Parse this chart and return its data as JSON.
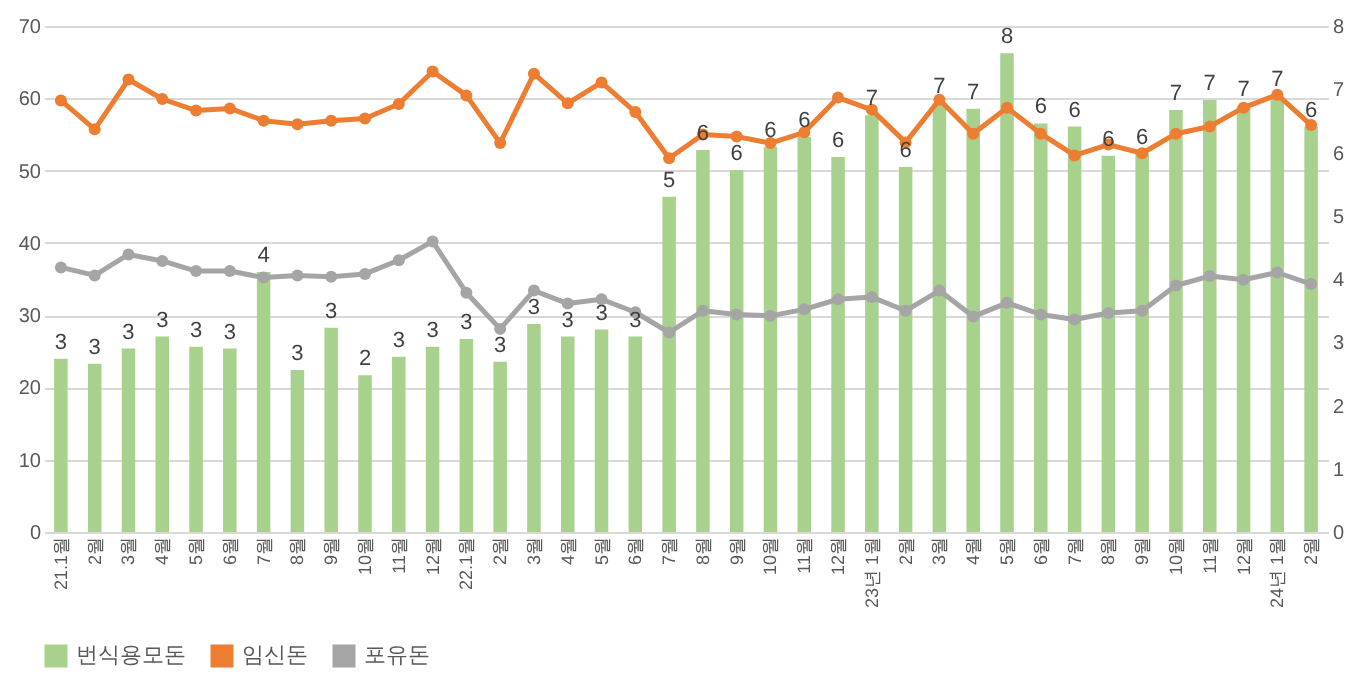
{
  "chart_data": {
    "type": "bar",
    "categories": [
      "21.1월",
      "2월",
      "3월",
      "4월",
      "5월",
      "6월",
      "7월",
      "8월",
      "9월",
      "10월",
      "11월",
      "12월",
      "22.1월",
      "2월",
      "3월",
      "4월",
      "5월",
      "6월",
      "7월",
      "8월",
      "9월",
      "10월",
      "11월",
      "12월",
      "23년 1월",
      "2월",
      "3월",
      "4월",
      "5월",
      "6월",
      "7월",
      "8월",
      "9월",
      "10월",
      "11월",
      "12월",
      "24년 1월",
      "2월"
    ],
    "series": [
      {
        "name": "번식용모돈",
        "axis": "y2",
        "color": "#a9d18e",
        "values": [
          2.74,
          2.66,
          2.9,
          3.09,
          2.93,
          2.9,
          4.11,
          2.56,
          3.23,
          2.48,
          2.77,
          2.93,
          3.05,
          2.69,
          3.29,
          3.09,
          3.2,
          3.09,
          5.3,
          6.04,
          5.72,
          6.09,
          6.25,
          5.93,
          6.59,
          5.77,
          6.78,
          6.69,
          7.57,
          6.46,
          6.41,
          5.95,
          5.98,
          6.67,
          6.83,
          6.73,
          6.89,
          6.41
        ],
        "value_labels": [
          "3",
          "3",
          "3",
          "3",
          "3",
          "3",
          "4",
          "3",
          "3",
          "2",
          "3",
          "3",
          "3",
          "3",
          "3",
          "3",
          "3",
          "3",
          "5",
          "6",
          "6",
          "6",
          "6",
          "6",
          "7",
          "6",
          "7",
          "7",
          "8",
          "6",
          "6",
          "6",
          "6",
          "7",
          "7",
          "7",
          "7",
          "6"
        ]
      },
      {
        "name": "임신돈",
        "type": "line",
        "color": "#ed7d31",
        "values": [
          59.7,
          55.7,
          62.6,
          59.9,
          58.3,
          58.6,
          56.9,
          56.4,
          56.9,
          57.2,
          59.2,
          63.7,
          60.4,
          53.8,
          63.4,
          59.3,
          62.2,
          58.1,
          51.7,
          55.0,
          54.7,
          53.8,
          55.3,
          60.1,
          58.4,
          53.9,
          59.8,
          55.1,
          58.7,
          55.1,
          52.1,
          53.6,
          52.4,
          55.1,
          56.1,
          58.7,
          60.5,
          56.3
        ]
      },
      {
        "name": "포유돈",
        "type": "line",
        "color": "#a5a5a5",
        "values": [
          36.6,
          35.5,
          38.4,
          37.5,
          36.1,
          36.1,
          35.2,
          35.5,
          35.3,
          35.7,
          37.6,
          40.2,
          33.1,
          28.1,
          33.4,
          31.6,
          32.2,
          30.4,
          27.6,
          30.6,
          30.1,
          29.9,
          30.8,
          32.2,
          32.5,
          30.6,
          33.4,
          29.8,
          31.7,
          30.1,
          29.4,
          30.3,
          30.6,
          34.1,
          35.4,
          34.9,
          35.9,
          34.3
        ]
      }
    ],
    "ylim": [
      0,
      70
    ],
    "yticks": [
      0,
      10,
      20,
      30,
      40,
      50,
      60,
      70
    ],
    "y2lim": [
      0,
      8
    ],
    "y2ticks": [
      0,
      1,
      2,
      3,
      4,
      5,
      6,
      7,
      8
    ],
    "grid": "y",
    "legend": "bottom",
    "marker": "circle"
  }
}
